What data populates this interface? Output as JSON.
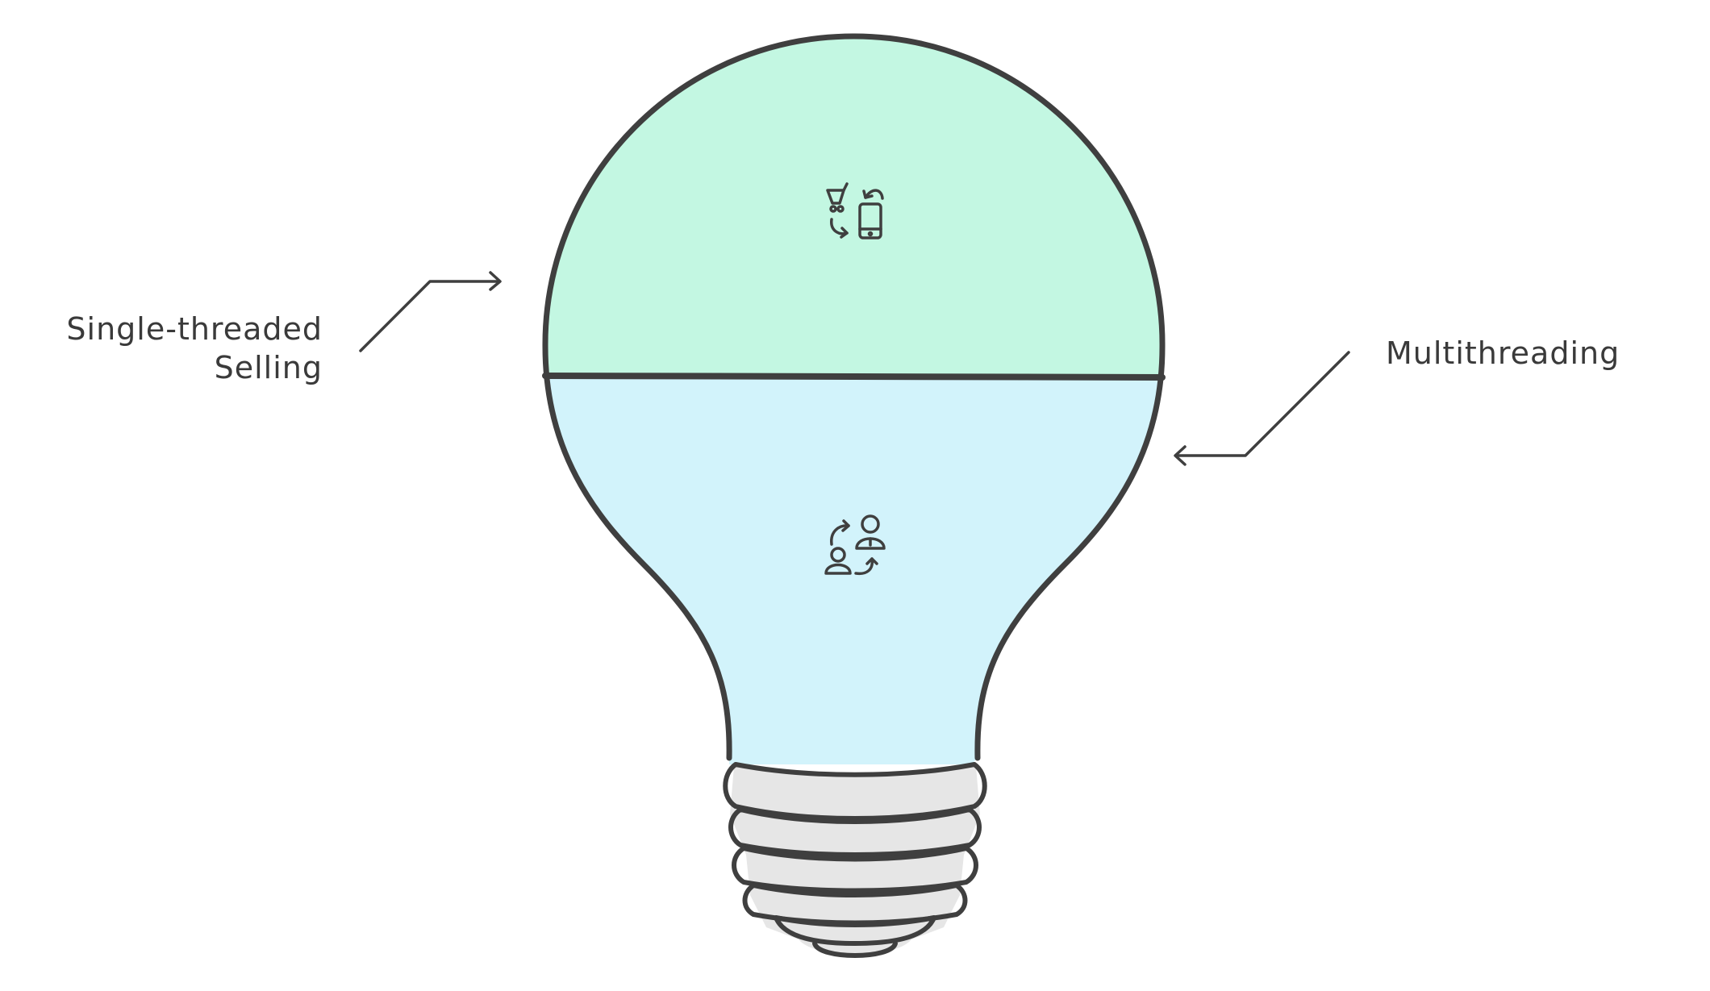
{
  "labels": {
    "left_line1": "Single-threaded",
    "left_line2": "Selling",
    "right": "Multithreading"
  },
  "icons": {
    "top": "cart-phone-exchange-icon",
    "bottom": "person-exchange-icon"
  },
  "colors": {
    "outline": "#3f3f3f",
    "top_fill": "#c3f7e2",
    "bottom_fill": "#d2f3fb",
    "base_fill": "#e6e6e6",
    "text": "#3a3a3a"
  }
}
